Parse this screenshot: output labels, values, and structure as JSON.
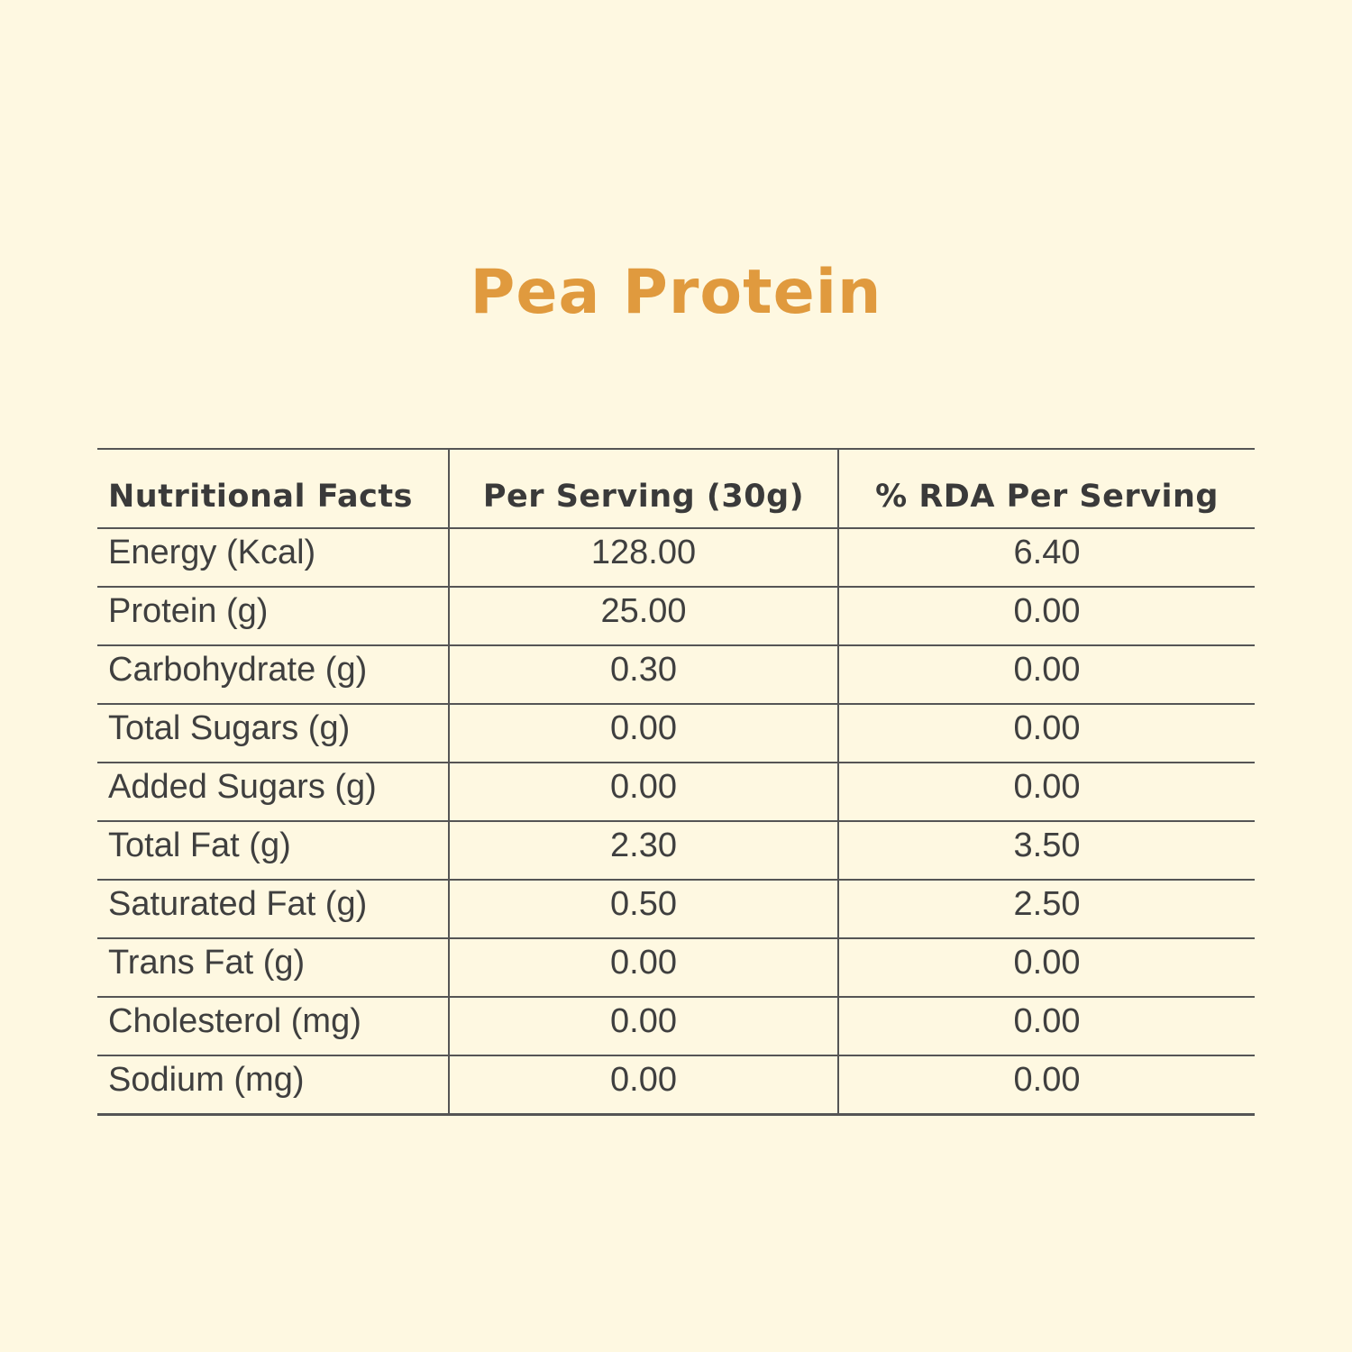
{
  "title": "Pea Protein",
  "table": {
    "headers": [
      "Nutritional Facts",
      "Per Serving (30g)",
      "% RDA Per Serving"
    ],
    "rows": [
      {
        "name": "Energy (Kcal)",
        "per_serving": "128.00",
        "rda": "6.40"
      },
      {
        "name": "Protein (g)",
        "per_serving": "25.00",
        "rda": "0.00"
      },
      {
        "name": "Carbohydrate (g)",
        "per_serving": "0.30",
        "rda": "0.00"
      },
      {
        "name": "Total Sugars (g)",
        "per_serving": "0.00",
        "rda": "0.00"
      },
      {
        "name": "Added Sugars (g)",
        "per_serving": "0.00",
        "rda": "0.00"
      },
      {
        "name": "Total Fat (g)",
        "per_serving": "2.30",
        "rda": "3.50"
      },
      {
        "name": "Saturated Fat (g)",
        "per_serving": "0.50",
        "rda": "2.50"
      },
      {
        "name": "Trans Fat (g)",
        "per_serving": "0.00",
        "rda": "0.00"
      },
      {
        "name": "Cholesterol (mg)",
        "per_serving": "0.00",
        "rda": "0.00"
      },
      {
        "name": "Sodium (mg)",
        "per_serving": "0.00",
        "rda": "0.00"
      }
    ]
  },
  "colors": {
    "background": "#FEF8E1",
    "title": "#E09A3E",
    "text": "#3F3F3F",
    "rule": "#555555"
  }
}
